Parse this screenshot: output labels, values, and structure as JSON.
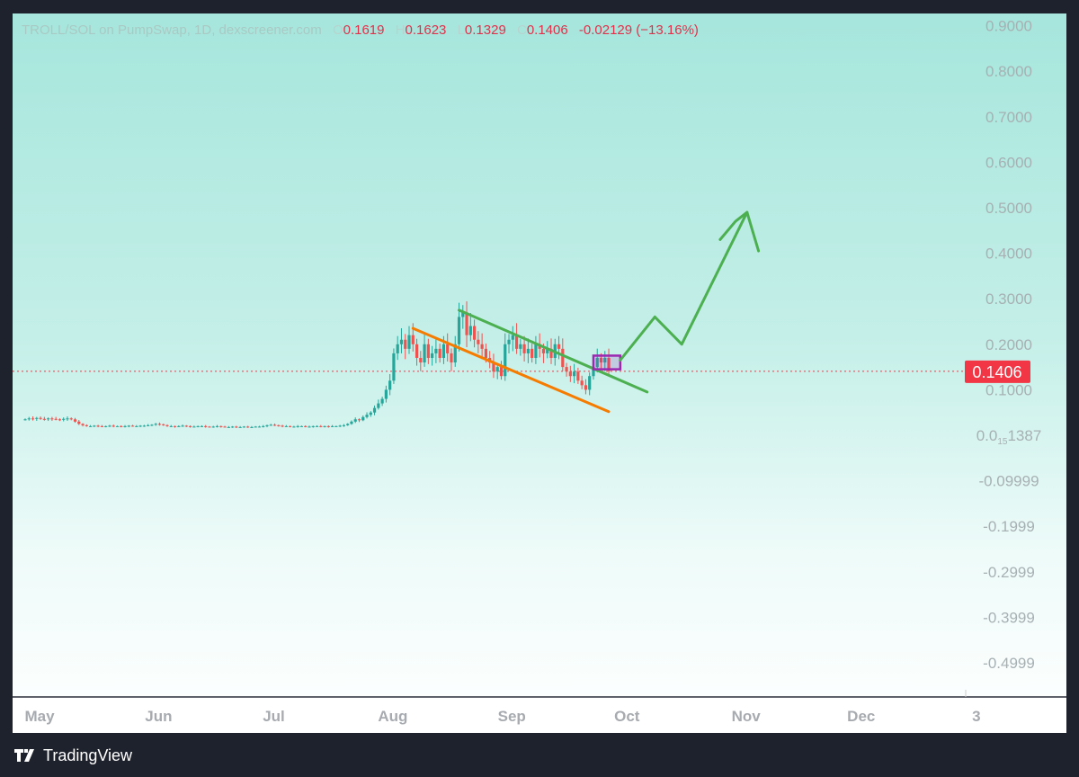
{
  "legend": {
    "symbol": "TROLL/SOL on PumpSwap, 1D, dexscreener.com",
    "o_label": "O",
    "o": "0.1619",
    "h_label": "H",
    "h": "0.1623",
    "l_label": "L",
    "l": "0.1329",
    "c_label": "C",
    "c": "0.1406",
    "change": "-0.02129 (−13.16%)"
  },
  "footer": {
    "brand": "TradingView"
  },
  "colors": {
    "up": "#26a69a",
    "down": "#ef5350",
    "last": "#f23645",
    "trend_upper": "#4caf50",
    "trend_lower": "#f57c00",
    "box": "#9c27b0",
    "projection": "#4caf50"
  },
  "chart_data": {
    "type": "candlestick",
    "title": "TROLL/SOL on PumpSwap, 1D",
    "y_ticks": [
      {
        "v": 0.9,
        "label": "0.9000"
      },
      {
        "v": 0.8,
        "label": "0.8000"
      },
      {
        "v": 0.7,
        "label": "0.7000"
      },
      {
        "v": 0.6,
        "label": "0.6000"
      },
      {
        "v": 0.5,
        "label": "0.5000"
      },
      {
        "v": 0.4,
        "label": "0.4000"
      },
      {
        "v": 0.3,
        "label": "0.3000"
      },
      {
        "v": 0.2,
        "label": "0.2000"
      },
      {
        "v": 0.1,
        "label": "0.1000"
      },
      {
        "v": 0.0,
        "label": "0.0",
        "sub": "15",
        "rest": "1387"
      },
      {
        "v": -0.1,
        "label": "-0.09999"
      },
      {
        "v": -0.2,
        "label": "-0.1999"
      },
      {
        "v": -0.3,
        "label": "-0.2999"
      },
      {
        "v": -0.4,
        "label": "-0.3999"
      },
      {
        "v": -0.5,
        "label": "-0.4999"
      }
    ],
    "x_ticks": [
      {
        "day": 0,
        "label": "May"
      },
      {
        "day": 31,
        "label": "Jun"
      },
      {
        "day": 61,
        "label": "Jul"
      },
      {
        "day": 92,
        "label": "Aug"
      },
      {
        "day": 123,
        "label": "Sep"
      },
      {
        "day": 153,
        "label": "Oct"
      },
      {
        "day": 184,
        "label": "Nov"
      },
      {
        "day": 214,
        "label": "Dec"
      },
      {
        "day": 244,
        "label": "3"
      }
    ],
    "ylim": [
      -0.53,
      0.93
    ],
    "last_price": {
      "value": 0.1406,
      "label": "0.1406"
    },
    "first_day": "May 1",
    "closes": [
      0.035,
      0.037,
      0.036,
      0.038,
      0.036,
      0.035,
      0.037,
      0.036,
      0.035,
      0.034,
      0.036,
      0.037,
      0.035,
      0.03,
      0.025,
      0.022,
      0.02,
      0.02,
      0.021,
      0.02,
      0.019,
      0.02,
      0.021,
      0.02,
      0.02,
      0.019,
      0.02,
      0.021,
      0.02,
      0.02,
      0.021,
      0.021,
      0.022,
      0.023,
      0.025,
      0.024,
      0.022,
      0.02,
      0.02,
      0.019,
      0.02,
      0.021,
      0.02,
      0.019,
      0.019,
      0.02,
      0.02,
      0.019,
      0.018,
      0.019,
      0.02,
      0.019,
      0.018,
      0.018,
      0.019,
      0.018,
      0.018,
      0.019,
      0.018,
      0.018,
      0.019,
      0.019,
      0.02,
      0.022,
      0.023,
      0.022,
      0.021,
      0.02,
      0.02,
      0.019,
      0.019,
      0.02,
      0.02,
      0.019,
      0.019,
      0.02,
      0.02,
      0.019,
      0.02,
      0.019,
      0.02,
      0.02,
      0.021,
      0.022,
      0.025,
      0.03,
      0.035,
      0.033,
      0.04,
      0.045,
      0.05,
      0.06,
      0.07,
      0.08,
      0.1,
      0.12,
      0.18,
      0.2,
      0.21,
      0.19,
      0.22,
      0.2,
      0.17,
      0.16,
      0.2,
      0.17,
      0.18,
      0.19,
      0.17,
      0.2,
      0.18,
      0.16,
      0.2,
      0.26,
      0.27,
      0.22,
      0.24,
      0.21,
      0.2,
      0.19,
      0.17,
      0.16,
      0.14,
      0.15,
      0.13,
      0.2,
      0.21,
      0.22,
      0.19,
      0.2,
      0.18,
      0.19,
      0.17,
      0.2,
      0.19,
      0.18,
      0.19,
      0.17,
      0.2,
      0.19,
      0.15,
      0.14,
      0.13,
      0.14,
      0.12,
      0.11,
      0.1,
      0.13,
      0.15,
      0.17,
      0.16,
      0.17,
      0.1406
    ],
    "drawings": [
      {
        "kind": "trendline",
        "name": "upper-channel-line",
        "color": "trend_upper",
        "points": [
          [
            113,
            0.275
          ],
          [
            162,
            0.095
          ]
        ]
      },
      {
        "kind": "trendline",
        "name": "lower-channel-line",
        "color": "trend_lower",
        "points": [
          [
            101,
            0.235
          ],
          [
            152,
            0.052
          ]
        ]
      },
      {
        "kind": "rectangle",
        "name": "breakout-box",
        "color": "box",
        "points": [
          [
            148,
            0.175
          ],
          [
            155,
            0.145
          ]
        ]
      },
      {
        "kind": "path",
        "name": "projection-path",
        "color": "projection",
        "points": [
          [
            155,
            0.165
          ],
          [
            164,
            0.26
          ],
          [
            171,
            0.2
          ],
          [
            188,
            0.49
          ],
          [
            191,
            0.405
          ]
        ]
      },
      {
        "kind": "path",
        "name": "projection-arrowhead",
        "color": "projection",
        "points": [
          [
            181,
            0.43
          ],
          [
            185,
            0.47
          ],
          [
            188,
            0.49
          ]
        ]
      }
    ]
  }
}
